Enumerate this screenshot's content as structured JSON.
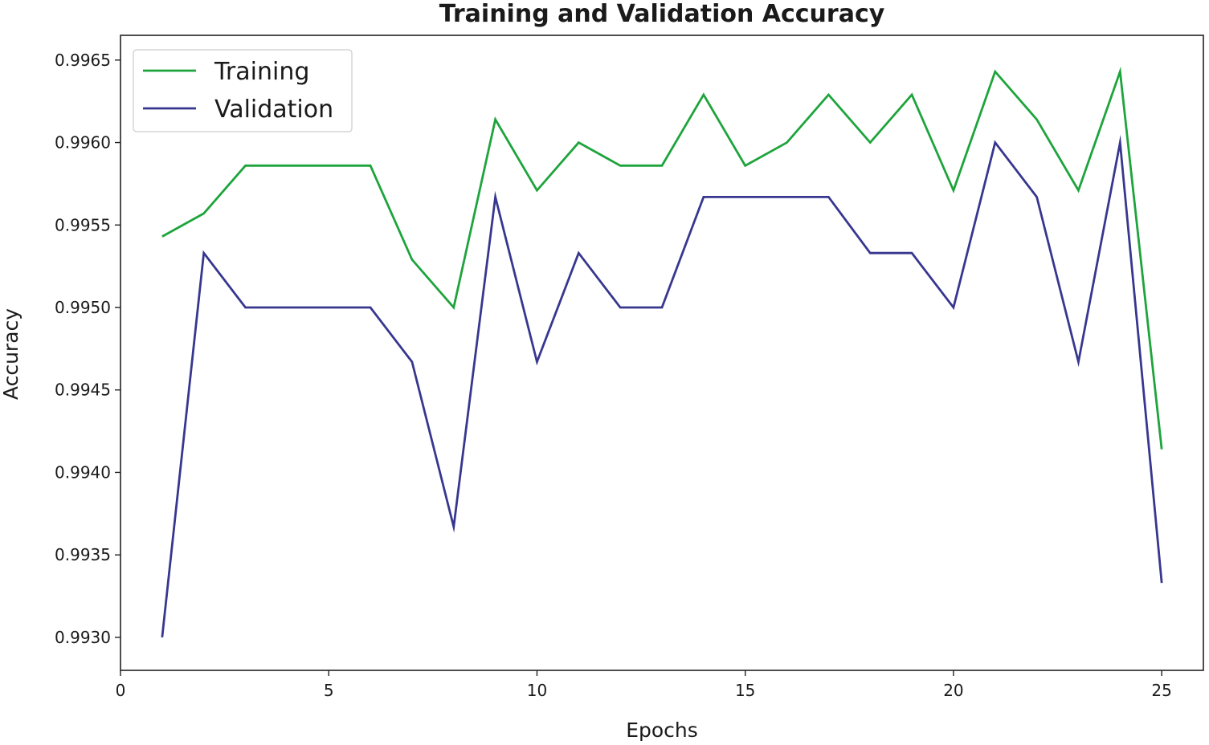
{
  "chart_data": {
    "type": "line",
    "title": "Training and Validation Accuracy",
    "xlabel": "Epochs",
    "ylabel": "Accuracy",
    "xlim": [
      0,
      26
    ],
    "ylim": [
      0.9928,
      0.99665
    ],
    "xticks": [
      0,
      5,
      10,
      15,
      20,
      25
    ],
    "yticks": [
      0.993,
      0.9935,
      0.994,
      0.9945,
      0.995,
      0.9955,
      0.996,
      0.9965
    ],
    "ytick_labels": [
      "0.9930",
      "0.9935",
      "0.9940",
      "0.9945",
      "0.9950",
      "0.9955",
      "0.9960",
      "0.9965"
    ],
    "grid": false,
    "legend_position": "top-left",
    "x": [
      1,
      2,
      3,
      4,
      5,
      6,
      7,
      8,
      9,
      10,
      11,
      12,
      13,
      14,
      15,
      16,
      17,
      18,
      19,
      20,
      21,
      22,
      23,
      24,
      25
    ],
    "series": [
      {
        "name": "Training",
        "color": "#1ea43c",
        "values": [
          0.99543,
          0.99557,
          0.99586,
          0.99586,
          0.99586,
          0.99586,
          0.99529,
          0.995,
          0.99614,
          0.99571,
          0.996,
          0.99586,
          0.99586,
          0.99629,
          0.99586,
          0.996,
          0.99629,
          0.996,
          0.99629,
          0.99571,
          0.99643,
          0.99614,
          0.99571,
          0.99643,
          0.99414
        ]
      },
      {
        "name": "Validation",
        "color": "#38378f",
        "values": [
          0.993,
          0.99533,
          0.995,
          0.995,
          0.995,
          0.995,
          0.99467,
          0.99367,
          0.99567,
          0.99467,
          0.99533,
          0.995,
          0.995,
          0.99567,
          0.99567,
          0.99567,
          0.99567,
          0.99533,
          0.99533,
          0.995,
          0.996,
          0.99567,
          0.99467,
          0.996,
          0.99333
        ]
      }
    ]
  }
}
